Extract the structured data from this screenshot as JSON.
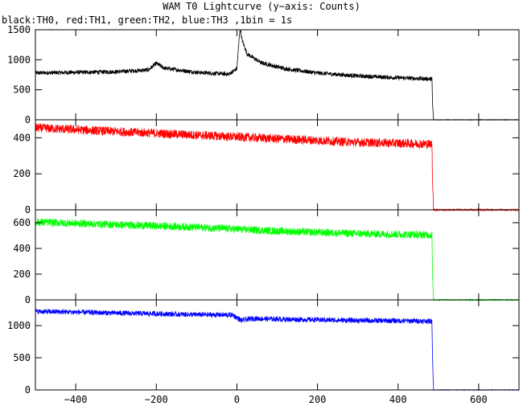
{
  "title": "WAM T0 Lightcurve (y−axis: Counts)",
  "subtitle": "black:TH0, red:TH1, green:TH2, blue:TH3 ,1bin = 1s",
  "chart_data": [
    {
      "type": "line",
      "name": "TH0",
      "color": "#000000",
      "xlim": [
        -500,
        700
      ],
      "ylim": [
        0,
        1500
      ],
      "yticks": [
        0,
        500,
        1000,
        1500
      ],
      "xticks": [
        -400,
        -200,
        0,
        200,
        400,
        600
      ],
      "points": [
        [
          -500,
          780
        ],
        [
          -400,
          790
        ],
        [
          -300,
          800
        ],
        [
          -220,
          830
        ],
        [
          -200,
          940
        ],
        [
          -180,
          860
        ],
        [
          -100,
          790
        ],
        [
          -20,
          760
        ],
        [
          0,
          850
        ],
        [
          5,
          1300
        ],
        [
          8,
          1560
        ],
        [
          12,
          1350
        ],
        [
          25,
          1100
        ],
        [
          60,
          950
        ],
        [
          120,
          850
        ],
        [
          200,
          780
        ],
        [
          300,
          730
        ],
        [
          400,
          700
        ],
        [
          484,
          680
        ],
        [
          486,
          200
        ],
        [
          488,
          0
        ],
        [
          700,
          0
        ]
      ],
      "noise": 35
    },
    {
      "type": "line",
      "name": "TH1",
      "color": "#ff0000",
      "xlim": [
        -500,
        700
      ],
      "ylim": [
        0,
        500
      ],
      "yticks": [
        0,
        200,
        400
      ],
      "xticks": [
        -400,
        -200,
        0,
        200,
        400,
        600
      ],
      "points": [
        [
          -500,
          455
        ],
        [
          -400,
          445
        ],
        [
          -300,
          435
        ],
        [
          -200,
          425
        ],
        [
          -100,
          415
        ],
        [
          0,
          405
        ],
        [
          100,
          395
        ],
        [
          200,
          385
        ],
        [
          300,
          375
        ],
        [
          400,
          370
        ],
        [
          484,
          365
        ],
        [
          486,
          130
        ],
        [
          488,
          0
        ],
        [
          700,
          0
        ]
      ],
      "noise": 25
    },
    {
      "type": "line",
      "name": "TH2",
      "color": "#00ff00",
      "xlim": [
        -500,
        700
      ],
      "ylim": [
        0,
        700
      ],
      "yticks": [
        0,
        200,
        400,
        600
      ],
      "xticks": [
        -400,
        -200,
        0,
        200,
        400,
        600
      ],
      "points": [
        [
          -500,
          605
        ],
        [
          -400,
          595
        ],
        [
          -300,
          585
        ],
        [
          -200,
          575
        ],
        [
          -100,
          565
        ],
        [
          0,
          550
        ],
        [
          100,
          535
        ],
        [
          200,
          525
        ],
        [
          300,
          515
        ],
        [
          400,
          510
        ],
        [
          484,
          505
        ],
        [
          486,
          140
        ],
        [
          488,
          0
        ],
        [
          700,
          0
        ]
      ],
      "noise": 30
    },
    {
      "type": "line",
      "name": "TH3",
      "color": "#0000ff",
      "xlim": [
        -500,
        700
      ],
      "ylim": [
        0,
        1400
      ],
      "yticks": [
        0,
        500,
        1000
      ],
      "xticks": [
        -400,
        -200,
        0,
        200,
        400,
        600
      ],
      "points": [
        [
          -500,
          1220
        ],
        [
          -400,
          1210
        ],
        [
          -300,
          1195
        ],
        [
          -200,
          1185
        ],
        [
          -100,
          1170
        ],
        [
          -10,
          1165
        ],
        [
          10,
          1080
        ],
        [
          40,
          1110
        ],
        [
          100,
          1100
        ],
        [
          200,
          1090
        ],
        [
          300,
          1080
        ],
        [
          400,
          1075
        ],
        [
          484,
          1070
        ],
        [
          486,
          380
        ],
        [
          488,
          0
        ],
        [
          700,
          0
        ]
      ],
      "noise": 40
    }
  ]
}
